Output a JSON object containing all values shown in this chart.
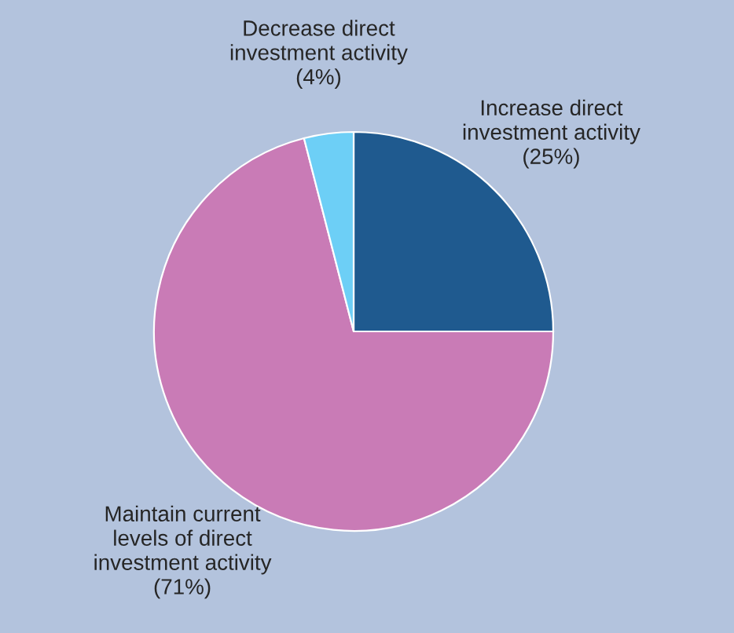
{
  "chart_data": {
    "type": "pie",
    "categories": [
      "Increase direct\ninvestment activity",
      "Maintain current\nlevels of direct\ninvestment activity",
      "Decrease direct\ninvestment activity"
    ],
    "values": [
      25,
      71,
      4
    ],
    "value_labels": [
      "(25%)",
      "(71%)",
      "(4%)"
    ],
    "colors": [
      "#1f5a8f",
      "#c97bb6",
      "#6dcff6"
    ]
  }
}
